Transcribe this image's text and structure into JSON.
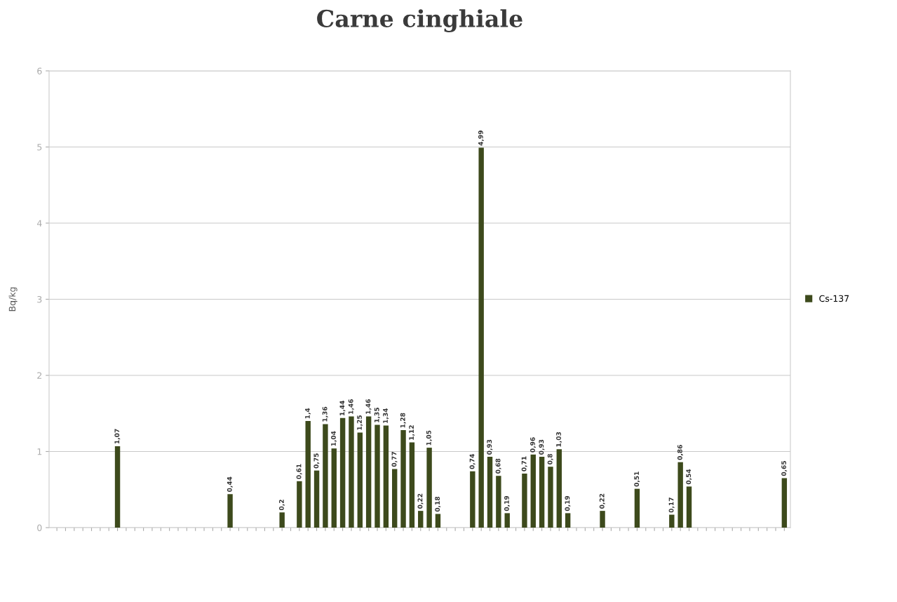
{
  "chart_data": {
    "type": "bar",
    "title": "Carne cinghiale",
    "ylabel": "Bq/kg",
    "categories": [
      null,
      null,
      null,
      null,
      null,
      null,
      null,
      null,
      null,
      null,
      null,
      null,
      null,
      null,
      null,
      null,
      null,
      null,
      null,
      null,
      null,
      null,
      null,
      null,
      null,
      null,
      null,
      null,
      null,
      null,
      null,
      null,
      null,
      null,
      null,
      null,
      null,
      null,
      null,
      null,
      null,
      null,
      null,
      null,
      null,
      null,
      null,
      null,
      null,
      null,
      null,
      null,
      null,
      null,
      null,
      null,
      null,
      null,
      null,
      null,
      null,
      null,
      null,
      null,
      null,
      null,
      null,
      null,
      null,
      null,
      null,
      null,
      null,
      null,
      null,
      null,
      null,
      null,
      null,
      null,
      null,
      null,
      null,
      null,
      null
    ],
    "series": [
      {
        "name": "Cs-137",
        "color": "#3d4a1c",
        "values": [
          null,
          null,
          null,
          null,
          null,
          null,
          null,
          1.07,
          null,
          null,
          null,
          null,
          null,
          null,
          null,
          null,
          null,
          null,
          null,
          null,
          0.44,
          null,
          null,
          null,
          null,
          null,
          0.2,
          null,
          0.61,
          1.4,
          0.75,
          1.36,
          1.04,
          1.44,
          1.46,
          1.25,
          1.46,
          1.35,
          1.34,
          0.77,
          1.28,
          1.12,
          0.22,
          1.05,
          0.18,
          null,
          null,
          null,
          0.74,
          4.99,
          0.93,
          0.68,
          0.19,
          null,
          0.71,
          0.96,
          0.93,
          0.8,
          1.03,
          0.19,
          null,
          null,
          null,
          0.22,
          null,
          null,
          null,
          0.51,
          null,
          null,
          null,
          0.17,
          0.86,
          0.54,
          null,
          null,
          null,
          null,
          null,
          null,
          null,
          null,
          null,
          null,
          0.65
        ],
        "value_labels": [
          null,
          null,
          null,
          null,
          null,
          null,
          null,
          "1,07",
          null,
          null,
          null,
          null,
          null,
          null,
          null,
          null,
          null,
          null,
          null,
          null,
          "0,44",
          null,
          null,
          null,
          null,
          null,
          "0,2",
          null,
          "0,61",
          "1,4",
          "0,75",
          "1,36",
          "1,04",
          "1,44",
          "1,46",
          "1,25",
          "1,46",
          "1,35",
          "1,34",
          "0,77",
          "1,28",
          "1,12",
          "0,22",
          "1,05",
          "0,18",
          null,
          null,
          null,
          "0,74",
          "4,99",
          "0,93",
          "0,68",
          "0,19",
          null,
          "0,71",
          "0,96",
          "0,93",
          "0,8",
          "1,03",
          "0,19",
          null,
          null,
          null,
          "0,22",
          null,
          null,
          null,
          "0,51",
          null,
          null,
          null,
          "0,17",
          "0,86",
          "0,54",
          null,
          null,
          null,
          null,
          null,
          null,
          null,
          null,
          null,
          null,
          "0,65"
        ]
      }
    ],
    "ylim": [
      0,
      6
    ],
    "yticks": [
      0,
      1,
      2,
      3,
      4,
      5,
      6
    ],
    "grid": "y",
    "legend": "right"
  }
}
